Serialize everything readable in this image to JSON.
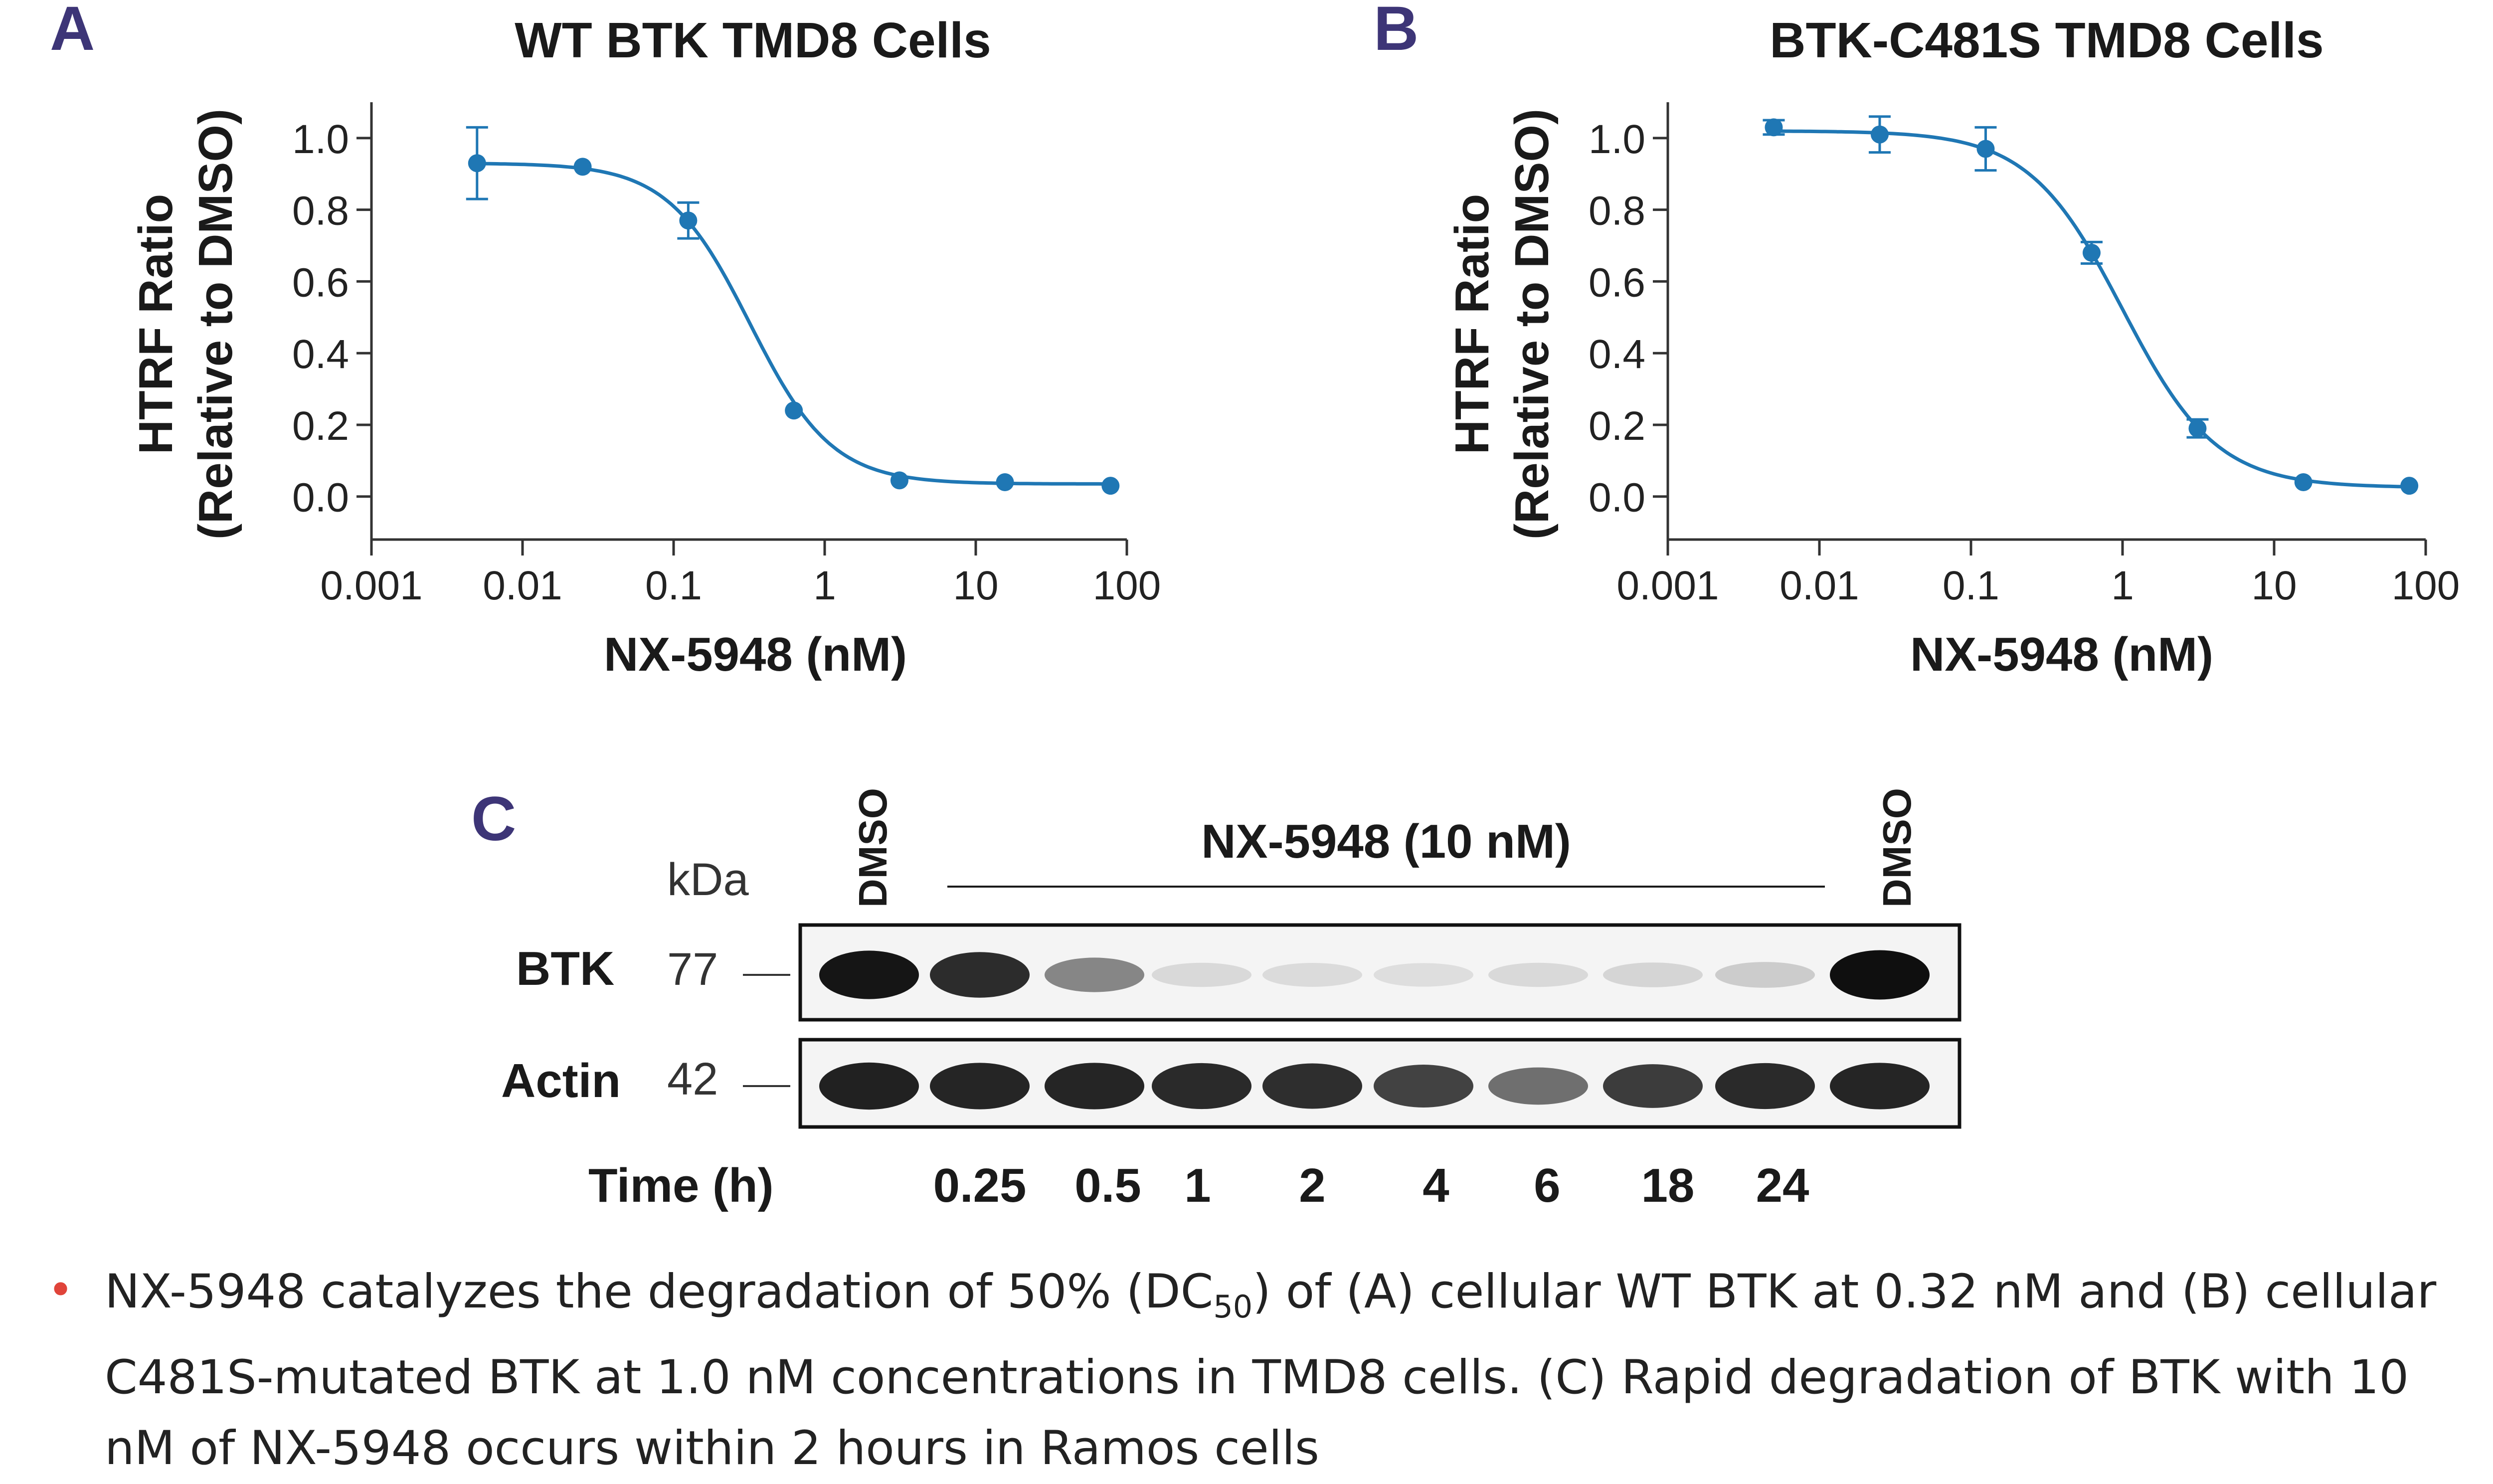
{
  "colors": {
    "curve": "#1f77b4",
    "panel_letter": "#3d3577",
    "text": "#1a1a1a",
    "bullet": "#e0443a"
  },
  "chart_data": [
    {
      "panel": "A",
      "type": "scatter",
      "title": "WT BTK TMD8 Cells",
      "xlabel": "NX-5948 (nM)",
      "ylabel_line1": "HTRF Ratio",
      "ylabel_line2": "(Relative to DMSO)",
      "xscale": "log",
      "xlim": [
        0.001,
        100
      ],
      "ylim": [
        -0.12,
        1.1
      ],
      "x_ticks": [
        "0.001",
        "0.01",
        "0.1",
        "1",
        "10",
        "100"
      ],
      "y_ticks": [
        "0.0",
        "0.2",
        "0.4",
        "0.6",
        "0.8",
        "1.0"
      ],
      "points": [
        {
          "x": 0.005,
          "y": 0.93,
          "err": 0.1
        },
        {
          "x": 0.025,
          "y": 0.92,
          "err": 0
        },
        {
          "x": 0.125,
          "y": 0.77,
          "err": 0.05
        },
        {
          "x": 0.625,
          "y": 0.24,
          "err": 0
        },
        {
          "x": 3.125,
          "y": 0.045,
          "err": 0
        },
        {
          "x": 15.6,
          "y": 0.04,
          "err": 0
        },
        {
          "x": 78,
          "y": 0.03,
          "err": 0
        }
      ],
      "fit": {
        "top": 0.93,
        "bottom": 0.035,
        "dc50": 0.32,
        "hill": 1.6
      }
    },
    {
      "panel": "B",
      "type": "scatter",
      "title": "BTK-C481S TMD8 Cells",
      "xlabel": "NX-5948 (nM)",
      "ylabel_line1": "HTRF Ratio",
      "ylabel_line2": "(Relative to DMSO)",
      "xscale": "log",
      "xlim": [
        0.001,
        100
      ],
      "ylim": [
        -0.12,
        1.1
      ],
      "x_ticks": [
        "0.001",
        "0.01",
        "0.1",
        "1",
        "10",
        "100"
      ],
      "y_ticks": [
        "0.0",
        "0.2",
        "0.4",
        "0.6",
        "0.8",
        "1.0"
      ],
      "points": [
        {
          "x": 0.005,
          "y": 1.03,
          "err": 0.02
        },
        {
          "x": 0.025,
          "y": 1.01,
          "err": 0.05
        },
        {
          "x": 0.125,
          "y": 0.97,
          "err": 0.06
        },
        {
          "x": 0.625,
          "y": 0.68,
          "err": 0.03
        },
        {
          "x": 3.125,
          "y": 0.19,
          "err": 0.025
        },
        {
          "x": 15.6,
          "y": 0.04,
          "err": 0
        },
        {
          "x": 78,
          "y": 0.03,
          "err": 0
        }
      ],
      "fit": {
        "top": 1.02,
        "bottom": 0.025,
        "dc50": 1.0,
        "hill": 1.4
      }
    }
  ],
  "blot": {
    "panel": "C",
    "treatment_label": "NX-5948 (10 nM)",
    "kda_label": "kDa",
    "lane_labels": [
      "DMSO",
      "DMSO"
    ],
    "rows": [
      {
        "protein": "BTK",
        "kda": "77",
        "intensities": [
          0.95,
          0.85,
          0.45,
          0.08,
          0.07,
          0.06,
          0.08,
          0.1,
          0.14,
          0.98
        ]
      },
      {
        "protein": "Actin",
        "kda": "42",
        "intensities": [
          0.9,
          0.88,
          0.88,
          0.86,
          0.84,
          0.75,
          0.55,
          0.78,
          0.86,
          0.88
        ]
      }
    ],
    "time_label": "Time (h)",
    "times": [
      "0.25",
      "0.5",
      "1",
      "2",
      "4",
      "6",
      "18",
      "24"
    ]
  },
  "caption": {
    "part1": "NX-5948 catalyzes the degradation of 50% (DC",
    "sub": "50",
    "part2": ") of (A) cellular WT BTK at 0.32 nM and (B) cellular C481S-mutated BTK at 1.0 nM concentrations in TMD8 cells. (C) Rapid degradation of BTK with 10 nM of NX-5948 occurs within 2 hours in Ramos cells"
  }
}
